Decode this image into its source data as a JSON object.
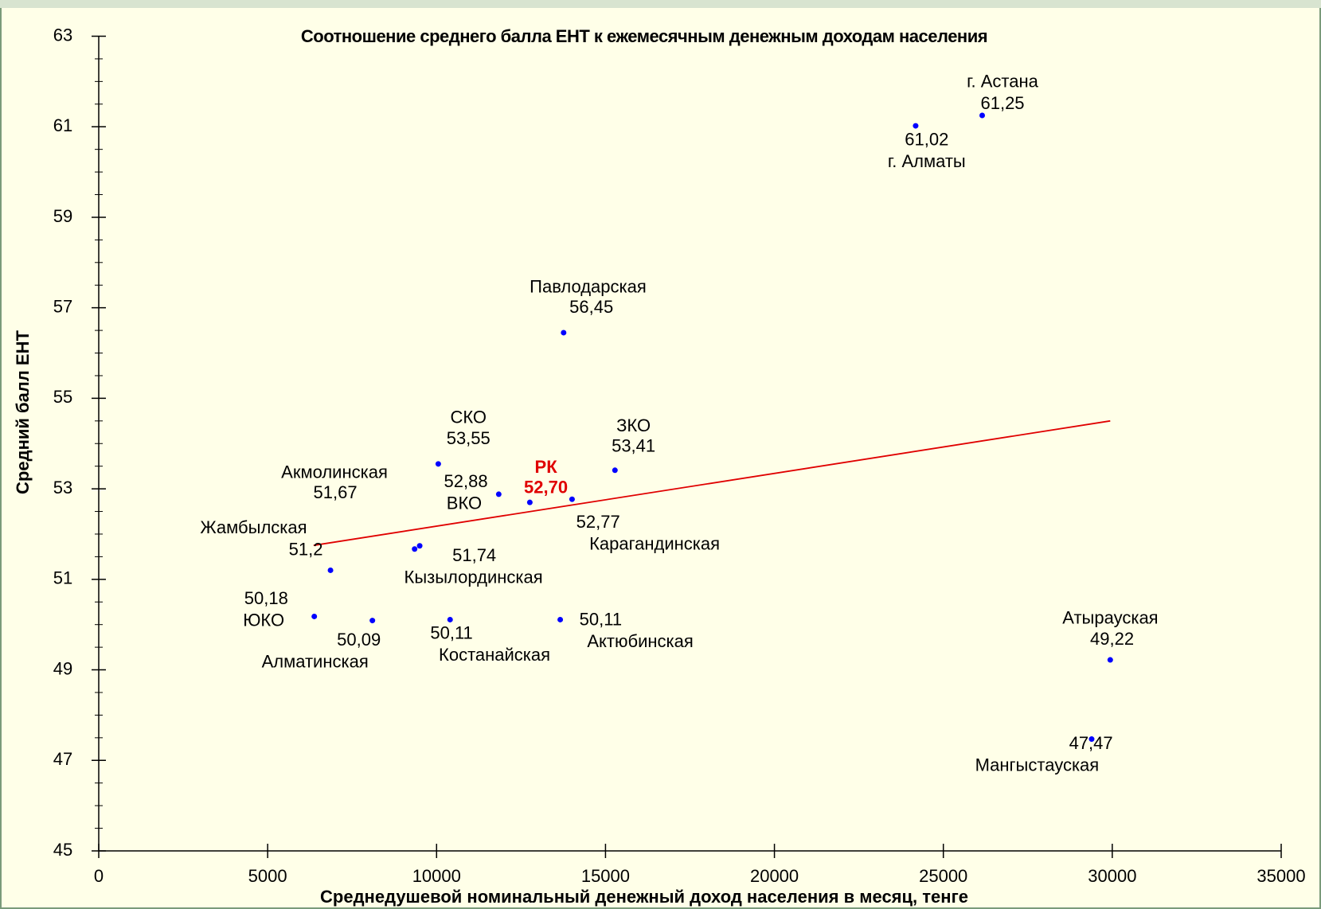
{
  "chart_data": {
    "type": "scatter",
    "title": "Соотношение среднего балла ЕНТ к ежемесячным денежным доходам населения",
    "xlabel": "Среднедушевой номинальный денежный доход населения в месяц, тенге",
    "ylabel": "Средний балл ЕНТ",
    "labels": [
      "г. Астана",
      "г. Алматы",
      "Павлодарская",
      "СКО",
      "ЗКО",
      "ВКО",
      "РК",
      "Карагандинская",
      "Акмолинская",
      "Кызылординская",
      "Жамбылская",
      "ЮКО",
      "Алматинская",
      "Костанайская",
      "Актюбинская",
      "Атырауская",
      "Мангыстауская"
    ],
    "x": [
      26150,
      24180,
      13760,
      10050,
      15280,
      11840,
      12760,
      14010,
      9350,
      9500,
      6860,
      6380,
      8100,
      10400,
      13660,
      29940,
      29390
    ],
    "values": [
      61.25,
      61.02,
      56.45,
      53.55,
      53.41,
      52.88,
      52.7,
      52.77,
      51.67,
      51.74,
      51.2,
      50.18,
      50.09,
      50.11,
      50.11,
      49.22,
      47.47
    ],
    "value_labels": [
      "61,25",
      "61,02",
      "56,45",
      "53,55",
      "53,41",
      "52,88",
      "52,70",
      "52,77",
      "51,67",
      "51,74",
      "51,2",
      "50,18",
      "50,09",
      "50,11",
      "50,11",
      "49,22",
      "47,47"
    ],
    "color": "#0000ff",
    "trendline": {
      "x": [
        6360,
        29940
      ],
      "y": [
        51.75,
        54.5
      ],
      "color": "#e00000"
    },
    "xlim": [
      0,
      35000
    ],
    "xticks": [
      0,
      5000,
      10000,
      15000,
      20000,
      25000,
      30000,
      35000
    ],
    "ylim": [
      45,
      63
    ],
    "yticks": [
      45,
      47,
      49,
      51,
      53,
      55,
      57,
      59,
      61,
      63
    ],
    "yminorticks": [
      45.5,
      46,
      46.5,
      47.5,
      48,
      48.5,
      49.5,
      50,
      50.5,
      51.5,
      52,
      52.5,
      53.5,
      54,
      54.5,
      55.5,
      56,
      56.5,
      57.5,
      58,
      58.5,
      59.5,
      60,
      60.5,
      61.5,
      62,
      62.5
    ],
    "grid": false
  }
}
